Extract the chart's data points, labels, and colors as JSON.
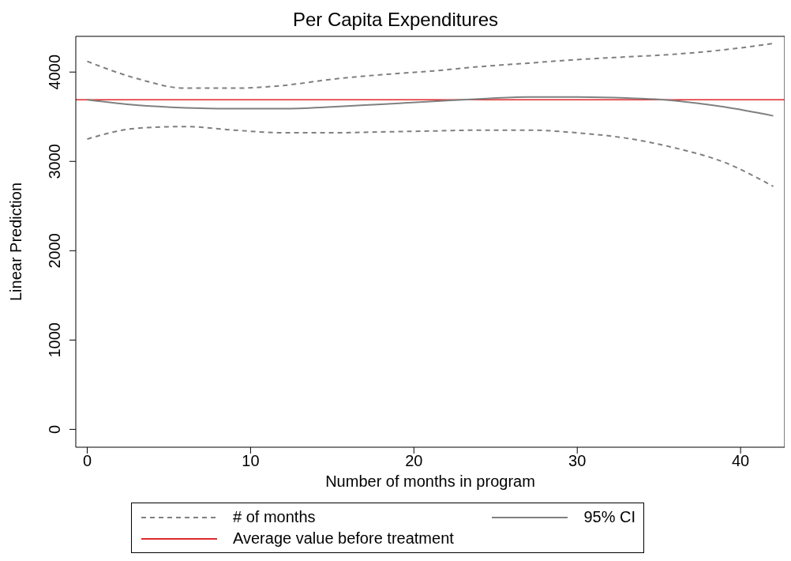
{
  "chart_data": {
    "type": "line",
    "title": "Per Capita Expenditures",
    "xlabel": "Number of months in program",
    "ylabel": "Linear Prediction",
    "x": [
      0,
      3,
      6,
      9,
      12,
      15,
      18,
      21,
      24,
      27,
      30,
      33,
      36,
      39,
      42
    ],
    "series": [
      {
        "name": "# of months",
        "color": "#808080",
        "line_style": "dashed",
        "values": [
          4120,
          3930,
          3820,
          3820,
          3850,
          3920,
          3970,
          4010,
          4060,
          4100,
          4140,
          4170,
          4200,
          4250,
          4320
        ]
      },
      {
        "color": "#808080",
        "line_style": "dashed",
        "values": [
          3250,
          3370,
          3390,
          3350,
          3320,
          3320,
          3330,
          3340,
          3350,
          3350,
          3320,
          3260,
          3150,
          2990,
          2720
        ]
      },
      {
        "name": "95% CI",
        "color": "#808080",
        "line_style": "solid",
        "values": [
          3690,
          3630,
          3600,
          3590,
          3590,
          3610,
          3640,
          3670,
          3700,
          3720,
          3720,
          3710,
          3680,
          3610,
          3510
        ]
      }
    ],
    "ref_lines": [
      {
        "axis": "y",
        "value": 3690,
        "label": "Average value before treatment",
        "color": "#e0282c",
        "line_style": "solid"
      }
    ],
    "xlim": [
      -0.7,
      42.7
    ],
    "xticks": [
      0,
      10,
      20,
      30,
      40
    ],
    "ylim": [
      -200,
      4400
    ],
    "yticks": [
      0,
      1000,
      2000,
      3000,
      4000
    ],
    "grid": false,
    "legend": "bottom",
    "marker": "none"
  }
}
